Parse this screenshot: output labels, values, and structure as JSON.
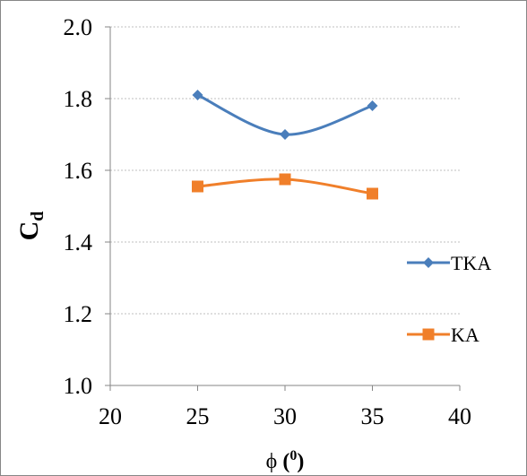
{
  "chart_data": {
    "type": "line",
    "x": [
      25,
      30,
      35
    ],
    "series": [
      {
        "name": "TKA",
        "values": [
          1.81,
          1.7,
          1.78
        ],
        "color": "#4A7EBB",
        "marker": "diamond"
      },
      {
        "name": "KA",
        "values": [
          1.555,
          1.575,
          1.535
        ],
        "color": "#F07F2A",
        "marker": "square"
      }
    ],
    "title": "",
    "xlabel_symbol": "ϕ",
    "xlabel_unit": "(0)",
    "xlabel_unit_text": "0",
    "ylabel_main": "C",
    "ylabel_sub": "d",
    "xlim": [
      20,
      40
    ],
    "ylim": [
      1.0,
      2.0
    ],
    "xticks": [
      "20",
      "25",
      "30",
      "35",
      "40"
    ],
    "yticks": [
      "1.0",
      "1.2",
      "1.4",
      "1.6",
      "1.8",
      "2.0"
    ],
    "grid": "horizontal",
    "legend": "right",
    "smooth": true
  }
}
